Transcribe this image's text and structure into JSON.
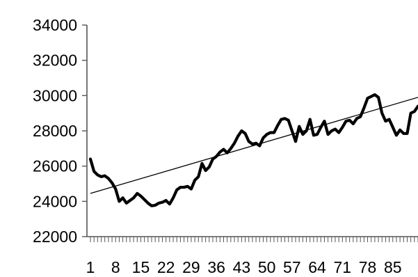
{
  "chart_data": {
    "type": "line",
    "title": "",
    "xlabel": "",
    "ylabel": "",
    "ylim": [
      22000,
      34000
    ],
    "yticks": [
      22000,
      24000,
      26000,
      28000,
      30000,
      32000,
      34000
    ],
    "ytick_labels": [
      "22000",
      "24000",
      "26000",
      "28000",
      "30000",
      "32000",
      "34000"
    ],
    "x_count": 92,
    "xtick_values": [
      1,
      8,
      15,
      22,
      29,
      36,
      43,
      50,
      57,
      64,
      71,
      78,
      85
    ],
    "xtick_labels": [
      "1",
      "8",
      "15",
      "22",
      "29",
      "36",
      "43",
      "50",
      "57",
      "64",
      "71",
      "78",
      "85"
    ],
    "grid": false,
    "legend": "none",
    "colors": {
      "series": "#000000",
      "trend": "#000000",
      "axis": "#555555"
    },
    "series": [
      {
        "kind": "data",
        "values": [
          26400,
          25700,
          25500,
          25400,
          25450,
          25300,
          25050,
          24700,
          24000,
          24200,
          23900,
          24050,
          24200,
          24450,
          24300,
          24100,
          23900,
          23750,
          23780,
          23900,
          23950,
          24050,
          23850,
          24200,
          24650,
          24800,
          24800,
          24850,
          24700,
          25200,
          25400,
          26150,
          25750,
          25950,
          26400,
          26550,
          26800,
          26950,
          26750,
          27000,
          27300,
          27700,
          28000,
          27850,
          27400,
          27250,
          27300,
          27150,
          27600,
          27800,
          27900,
          27900,
          28300,
          28650,
          28700,
          28600,
          28000,
          27400,
          28250,
          27800,
          28000,
          28650,
          27750,
          27800,
          28200,
          28550,
          27800,
          28000,
          28100,
          27900,
          28200,
          28550,
          28600,
          28400,
          28700,
          28800,
          29300,
          29850,
          29950,
          30050,
          29900,
          29000,
          28550,
          28650,
          28200,
          27750,
          28050,
          27850,
          27850,
          29000,
          29100,
          29400
        ]
      },
      {
        "kind": "trend",
        "values": [
          24450,
          29900
        ]
      }
    ]
  }
}
